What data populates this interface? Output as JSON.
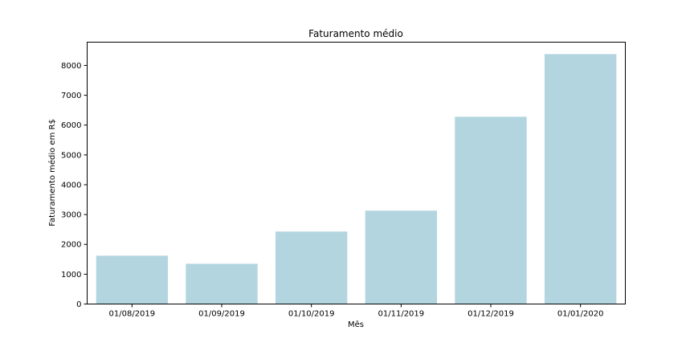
{
  "chart_data": {
    "type": "bar",
    "title": "Faturamento médio",
    "xlabel": "Mês",
    "ylabel": "Faturamento médio em R$",
    "categories": [
      "01/08/2019",
      "01/09/2019",
      "01/10/2019",
      "01/11/2019",
      "01/12/2019",
      "01/01/2020"
    ],
    "values": [
      1620,
      1350,
      2430,
      3130,
      6280,
      8380
    ],
    "ylim": [
      0,
      8780
    ],
    "yticks": [
      0,
      1000,
      2000,
      3000,
      4000,
      5000,
      6000,
      7000,
      8000
    ],
    "bar_color": "#b3d5e0",
    "grid": false,
    "legend": "none"
  }
}
